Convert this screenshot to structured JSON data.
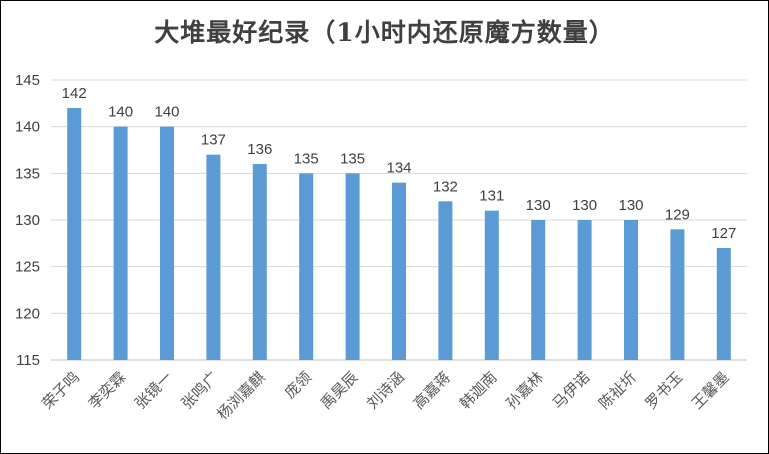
{
  "chart_data": {
    "type": "bar",
    "title": "大堆最好纪录（1小时内还原魔方数量）",
    "categories": [
      "荣子鸣",
      "李奕霖",
      "张镜一",
      "张鸣广",
      "杨浏嘉麒",
      "庞领",
      "禹昊辰",
      "刘诗涵",
      "高嘉蒋",
      "韩迦南",
      "孙嘉林",
      "马伊诺",
      "陈祉圻",
      "罗书玉",
      "王馨墨"
    ],
    "values": [
      142,
      140,
      140,
      137,
      136,
      135,
      135,
      134,
      132,
      131,
      130,
      130,
      130,
      129,
      127
    ],
    "xlabel": "",
    "ylabel": "",
    "ylim": [
      115,
      145
    ],
    "yticks": [
      115,
      120,
      125,
      130,
      135,
      140,
      145
    ],
    "grid": true,
    "legend": "none",
    "bar_color": "#5b9bd5",
    "data_labels": true
  }
}
